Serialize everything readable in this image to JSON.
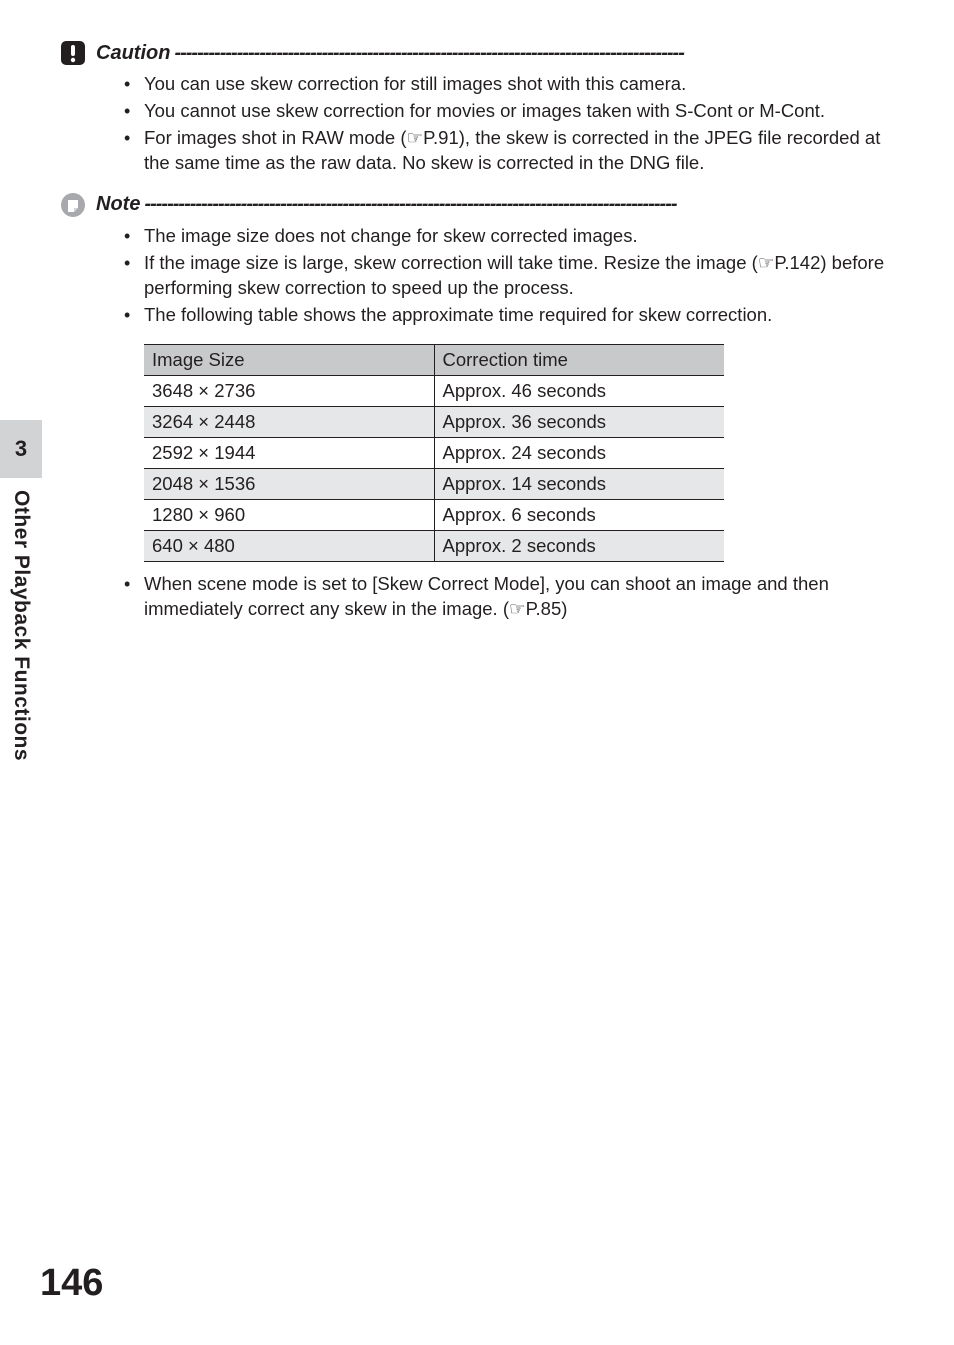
{
  "caution": {
    "label": "Caution",
    "dashes": "------------------------------------------------------------------------------------------",
    "items": [
      "You can use skew correction for still images shot with this camera.",
      "You cannot use skew correction for movies or images taken with S-Cont or M-Cont.",
      "For images shot in RAW mode (☞P.91), the skew is corrected in the JPEG file recorded at the same time as the raw data. No skew is corrected in the DNG file."
    ]
  },
  "note": {
    "label": "Note",
    "dashes": "----------------------------------------------------------------------------------------------",
    "items_before_table": [
      "The image size does not change for skew corrected images.",
      "If the image size is large, skew correction will take time. Resize the image (☞P.142) before performing skew correction to speed up the process.",
      "The following table shows the approximate time required for skew correction."
    ],
    "items_after_table": [
      "When scene mode is set to [Skew Correct Mode], you can shoot an image and then immediately correct any skew in the image. (☞P.85)"
    ]
  },
  "table": {
    "col1": "Image Size",
    "col2": "Correction time",
    "rows": [
      {
        "size": "3648 × 2736",
        "time": "Approx. 46 seconds",
        "shade": false
      },
      {
        "size": "3264 × 2448",
        "time": "Approx. 36 seconds",
        "shade": true
      },
      {
        "size": "2592 × 1944",
        "time": "Approx. 24 seconds",
        "shade": false
      },
      {
        "size": "2048 × 1536",
        "time": "Approx. 14 seconds",
        "shade": true
      },
      {
        "size": "1280 × 960",
        "time": "Approx. 6 seconds",
        "shade": false
      },
      {
        "size": "640 × 480",
        "time": "Approx. 2 seconds",
        "shade": true
      }
    ]
  },
  "sidebar": {
    "chapter_number": "3",
    "chapter_title": "Other Playback Functions"
  },
  "page_number": "146",
  "colors": {
    "text": "#231f20",
    "tab_bg": "#d1d3d4",
    "row_shade": "#e6e7e8",
    "header_shade": "#c8c9cb"
  }
}
